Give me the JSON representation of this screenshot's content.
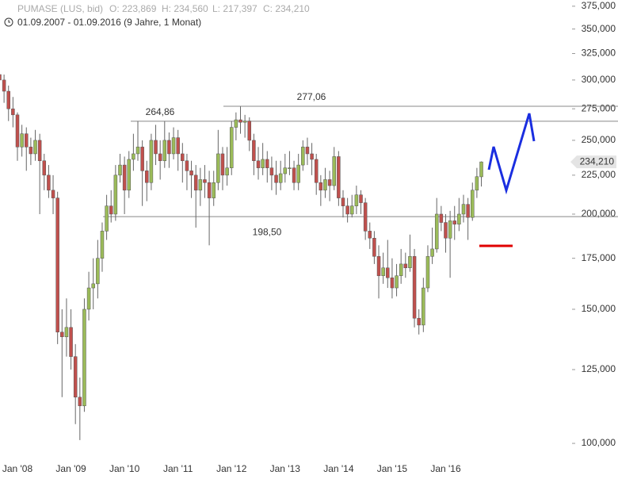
{
  "chart_data": {
    "type": "candlestick",
    "instrument": "PUMASE (LUS, bid)",
    "ohlc_labels": [
      "O: 223,869",
      "H: 234,560",
      "L: 217,397",
      "C: 234,210"
    ],
    "subtitle": "01.09.2007 - 01.09.2016 (9 Jahre, 1 Monat)",
    "categories": [
      null,
      null,
      null,
      null,
      "Jan '08",
      null,
      null,
      null,
      null,
      null,
      null,
      null,
      null,
      null,
      null,
      null,
      "Jan '09",
      null,
      null,
      null,
      null,
      null,
      null,
      null,
      null,
      null,
      null,
      null,
      "Jan '10",
      null,
      null,
      null,
      null,
      null,
      null,
      null,
      null,
      null,
      null,
      null,
      "Jan '11",
      null,
      null,
      null,
      null,
      null,
      null,
      null,
      null,
      null,
      null,
      null,
      "Jan '12",
      null,
      null,
      null,
      null,
      null,
      null,
      null,
      null,
      null,
      null,
      null,
      "Jan '13",
      null,
      null,
      null,
      null,
      null,
      null,
      null,
      null,
      null,
      null,
      null,
      "Jan '14",
      null,
      null,
      null,
      null,
      null,
      null,
      null,
      null,
      null,
      null,
      null,
      "Jan '15",
      null,
      null,
      null,
      null,
      null,
      null,
      null,
      null,
      null,
      null,
      null,
      "Jan '16",
      null,
      null,
      null,
      null,
      null,
      null,
      null,
      null
    ],
    "open": [
      305000,
      300000,
      290000,
      275000,
      270000,
      245000,
      255000,
      245000,
      240000,
      250000,
      235000,
      225000,
      215000,
      210000,
      140000,
      138000,
      142000,
      130000,
      115000,
      112000,
      150000,
      160000,
      162000,
      175000,
      190000,
      205000,
      200000,
      225000,
      232000,
      215000,
      236000,
      240000,
      245000,
      228000,
      220000,
      250000,
      240000,
      235000,
      250000,
      240000,
      252000,
      240000,
      235000,
      228000,
      225000,
      215000,
      222000,
      220000,
      210000,
      220000,
      240000,
      225000,
      230000,
      260000,
      266000,
      264000,
      265000,
      250000,
      235000,
      230000,
      236000,
      230000,
      225000,
      220000,
      226000,
      230000,
      230000,
      220000,
      232000,
      245000,
      240000,
      236000,
      220000,
      215000,
      222000,
      218000,
      238000,
      210000,
      205000,
      200000,
      205000,
      212000,
      207000,
      190000,
      186000,
      176000,
      166000,
      170000,
      165000,
      160000,
      166000,
      172000,
      170000,
      176000,
      146000,
      143000,
      160000,
      176000,
      180000,
      200000,
      195000,
      186000,
      196000,
      194000,
      200000,
      206000,
      198000,
      215000,
      223869
    ],
    "high": [
      312000,
      305000,
      295000,
      285000,
      272000,
      262000,
      260000,
      252000,
      258000,
      255000,
      240000,
      232000,
      225000,
      214000,
      150000,
      155000,
      150000,
      135000,
      122000,
      155000,
      168000,
      175000,
      185000,
      195000,
      212000,
      215000,
      232000,
      240000,
      238000,
      242000,
      255000,
      265000,
      250000,
      235000,
      255000,
      262000,
      250000,
      265000,
      256000,
      260000,
      258000,
      248000,
      240000,
      235000,
      232000,
      230000,
      232000,
      228000,
      228000,
      258000,
      245000,
      245000,
      265000,
      272000,
      277000,
      270000,
      268000,
      255000,
      245000,
      248000,
      242000,
      238000,
      235000,
      235000,
      240000,
      242000,
      235000,
      240000,
      250000,
      252000,
      248000,
      240000,
      225000,
      230000,
      228000,
      245000,
      242000,
      215000,
      210000,
      212000,
      218000,
      215000,
      210000,
      195000,
      190000,
      182000,
      178000,
      185000,
      175000,
      172000,
      180000,
      178000,
      188000,
      180000,
      150000,
      165000,
      182000,
      192000,
      210000,
      205000,
      200000,
      202000,
      205000,
      210000,
      212000,
      210000,
      220000,
      230000,
      234560
    ],
    "low": [
      290000,
      280000,
      265000,
      260000,
      235000,
      238000,
      228000,
      232000,
      235000,
      200000,
      215000,
      210000,
      200000,
      135000,
      115000,
      130000,
      125000,
      106000,
      101000,
      110000,
      145000,
      150000,
      155000,
      168000,
      185000,
      195000,
      196000,
      220000,
      200000,
      210000,
      228000,
      235000,
      205000,
      208000,
      215000,
      232000,
      222000,
      230000,
      230000,
      236000,
      228000,
      220000,
      215000,
      210000,
      192000,
      205000,
      210000,
      182000,
      205000,
      215000,
      215000,
      218000,
      225000,
      250000,
      255000,
      252000,
      242000,
      225000,
      222000,
      225000,
      220000,
      215000,
      212000,
      215000,
      220000,
      225000,
      215000,
      215000,
      228000,
      232000,
      225000,
      212000,
      205000,
      210000,
      208000,
      215000,
      205000,
      198000,
      195000,
      198000,
      200000,
      200000,
      185000,
      180000,
      172000,
      155000,
      162000,
      160000,
      155000,
      156000,
      162000,
      165000,
      168000,
      142000,
      139000,
      140000,
      158000,
      172000,
      178000,
      190000,
      178000,
      165000,
      185000,
      190000,
      195000,
      185000,
      196000,
      210000,
      217397
    ],
    "close": [
      300000,
      290000,
      275000,
      270000,
      245000,
      255000,
      245000,
      240000,
      250000,
      235000,
      225000,
      215000,
      210000,
      140000,
      138000,
      142000,
      130000,
      115000,
      112000,
      150000,
      160000,
      162000,
      175000,
      190000,
      205000,
      200000,
      225000,
      232000,
      215000,
      236000,
      240000,
      245000,
      228000,
      220000,
      250000,
      240000,
      235000,
      250000,
      240000,
      252000,
      240000,
      235000,
      228000,
      225000,
      215000,
      222000,
      220000,
      210000,
      220000,
      240000,
      225000,
      230000,
      260000,
      266000,
      264000,
      265000,
      250000,
      235000,
      230000,
      236000,
      230000,
      225000,
      220000,
      226000,
      230000,
      230000,
      220000,
      232000,
      245000,
      240000,
      236000,
      220000,
      215000,
      222000,
      218000,
      238000,
      210000,
      205000,
      200000,
      205000,
      212000,
      207000,
      190000,
      186000,
      176000,
      166000,
      170000,
      165000,
      160000,
      166000,
      172000,
      170000,
      176000,
      146000,
      143000,
      160000,
      176000,
      180000,
      200000,
      195000,
      186000,
      196000,
      194000,
      200000,
      206000,
      198000,
      215000,
      224000,
      234210
    ],
    "up_color": "#9bbb59",
    "down_color": "#c0504d",
    "wick_color": "#666666",
    "log_y": true,
    "ylim": [
      95100,
      382100
    ],
    "yticks": [
      {
        "value": 100000,
        "label": "100,000"
      },
      {
        "value": 125000,
        "label": "125,000"
      },
      {
        "value": 150000,
        "label": "150,000"
      },
      {
        "value": 175000,
        "label": "175,000"
      },
      {
        "value": 200000,
        "label": "200,000"
      },
      {
        "value": 225000,
        "label": "225,000"
      },
      {
        "value": 250000,
        "label": "250,000"
      },
      {
        "value": 275000,
        "label": "275,000"
      },
      {
        "value": 300000,
        "label": "300,000"
      },
      {
        "value": 325000,
        "label": "325,000"
      },
      {
        "value": 350000,
        "label": "350,000"
      },
      {
        "value": 375000,
        "label": "375,000"
      }
    ],
    "hlines": [
      {
        "value": 264860,
        "label": "264,86"
      },
      {
        "value": 277060,
        "label": "277,06"
      },
      {
        "value": 198500,
        "label": "198,50"
      }
    ],
    "last_price": {
      "value": 234210,
      "label": "234,210"
    }
  }
}
